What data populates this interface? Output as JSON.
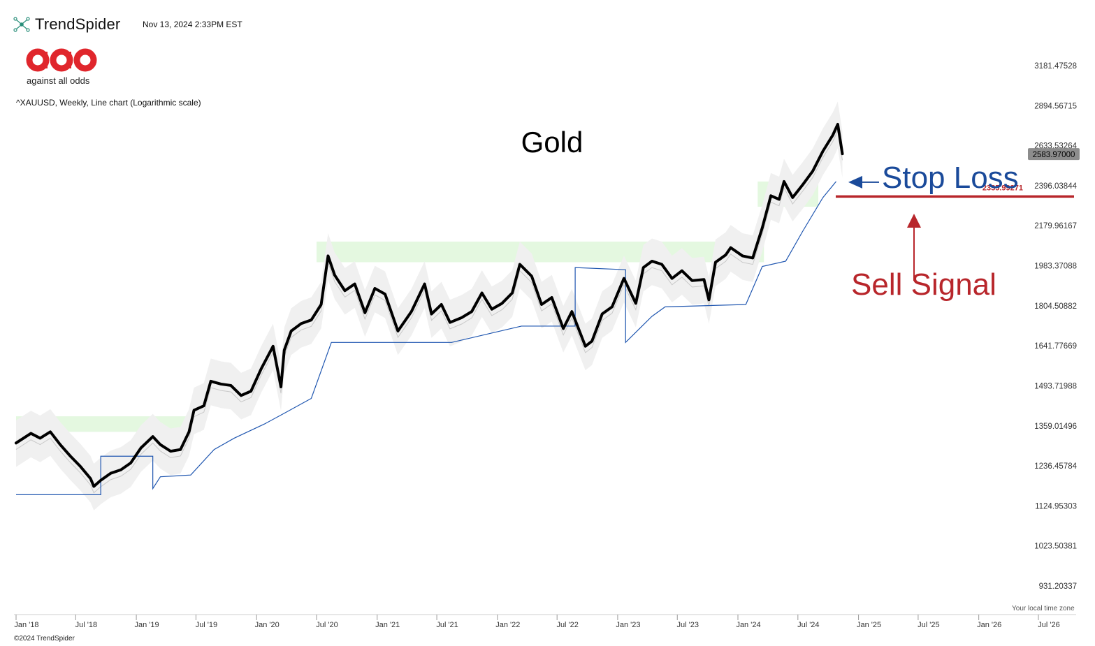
{
  "header": {
    "brand": "TrendSpider",
    "timestamp": "Nov 13, 2024 2:33PM EST",
    "logo_tagline": "against all odds",
    "subtitle": "^XAUUSD, Weekly, Line chart (Logarithmic scale)"
  },
  "footer": {
    "local_tz": "Your local time zone",
    "copyright": "©2024 TrendSpider"
  },
  "colors": {
    "price_line": "#000000",
    "stop_line": "#1f56b0",
    "band_fill": "#f0f0f0",
    "supply_zone": "#e4f8e0",
    "sell_level": "#b8262b",
    "stop_annotation": "#1a4a9a"
  },
  "chart_data": {
    "type": "line",
    "title": "Gold",
    "scale": "log",
    "y_ticks": [
      "3181.47528",
      "2894.56715",
      "2633.53264",
      "2396.03844",
      "2179.96167",
      "1983.37088",
      "1804.50882",
      "1641.77669",
      "1493.71988",
      "1359.01496",
      "1236.45784",
      "1124.95303",
      "1023.50381",
      "931.20337"
    ],
    "x_ticks": [
      "Jan '18",
      "Jul '18",
      "Jan '19",
      "Jul '19",
      "Jan '20",
      "Jul '20",
      "Jan '21",
      "Jul '21",
      "Jan '22",
      "Jul '22",
      "Jan '23",
      "Jul '23",
      "Jan '24",
      "Jul '24",
      "Jan '25",
      "Jul '25",
      "Jan '26",
      "Jul '26"
    ],
    "ylim": [
      900,
      3280
    ],
    "last_price": "2583.97000",
    "sell_level": "2335.99271",
    "series": [
      {
        "role": "price",
        "points": [
          [
            "2018-01-01",
            1305
          ],
          [
            "2018-02-15",
            1335
          ],
          [
            "2018-03-15",
            1320
          ],
          [
            "2018-04-15",
            1340
          ],
          [
            "2018-05-15",
            1300
          ],
          [
            "2018-06-15",
            1265
          ],
          [
            "2018-07-15",
            1235
          ],
          [
            "2018-08-15",
            1200
          ],
          [
            "2018-08-25",
            1178
          ],
          [
            "2018-09-15",
            1195
          ],
          [
            "2018-10-15",
            1215
          ],
          [
            "2018-11-15",
            1225
          ],
          [
            "2018-12-15",
            1245
          ],
          [
            "2019-01-15",
            1290
          ],
          [
            "2019-02-20",
            1325
          ],
          [
            "2019-03-15",
            1300
          ],
          [
            "2019-04-15",
            1280
          ],
          [
            "2019-05-15",
            1285
          ],
          [
            "2019-06-10",
            1340
          ],
          [
            "2019-06-25",
            1410
          ],
          [
            "2019-07-25",
            1425
          ],
          [
            "2019-08-15",
            1510
          ],
          [
            "2019-09-15",
            1500
          ],
          [
            "2019-10-15",
            1495
          ],
          [
            "2019-11-15",
            1460
          ],
          [
            "2019-12-15",
            1475
          ],
          [
            "2020-01-15",
            1555
          ],
          [
            "2020-02-20",
            1640
          ],
          [
            "2020-03-15",
            1490
          ],
          [
            "2020-03-25",
            1625
          ],
          [
            "2020-04-15",
            1700
          ],
          [
            "2020-05-15",
            1730
          ],
          [
            "2020-06-15",
            1745
          ],
          [
            "2020-07-15",
            1810
          ],
          [
            "2020-08-05",
            2030
          ],
          [
            "2020-08-25",
            1940
          ],
          [
            "2020-09-25",
            1870
          ],
          [
            "2020-10-25",
            1900
          ],
          [
            "2020-11-25",
            1775
          ],
          [
            "2020-12-25",
            1880
          ],
          [
            "2021-01-25",
            1855
          ],
          [
            "2021-03-05",
            1700
          ],
          [
            "2021-04-15",
            1780
          ],
          [
            "2021-05-25",
            1900
          ],
          [
            "2021-06-15",
            1770
          ],
          [
            "2021-07-15",
            1810
          ],
          [
            "2021-08-10",
            1735
          ],
          [
            "2021-09-15",
            1755
          ],
          [
            "2021-10-15",
            1780
          ],
          [
            "2021-11-15",
            1860
          ],
          [
            "2021-12-15",
            1790
          ],
          [
            "2022-01-15",
            1815
          ],
          [
            "2022-02-15",
            1860
          ],
          [
            "2022-03-10",
            1990
          ],
          [
            "2022-04-15",
            1935
          ],
          [
            "2022-05-15",
            1810
          ],
          [
            "2022-06-15",
            1840
          ],
          [
            "2022-07-20",
            1710
          ],
          [
            "2022-08-15",
            1780
          ],
          [
            "2022-09-25",
            1640
          ],
          [
            "2022-10-15",
            1660
          ],
          [
            "2022-11-15",
            1770
          ],
          [
            "2022-12-15",
            1800
          ],
          [
            "2023-01-20",
            1925
          ],
          [
            "2023-02-25",
            1815
          ],
          [
            "2023-03-20",
            1975
          ],
          [
            "2023-04-15",
            2005
          ],
          [
            "2023-05-15",
            1990
          ],
          [
            "2023-06-15",
            1925
          ],
          [
            "2023-07-15",
            1960
          ],
          [
            "2023-08-15",
            1915
          ],
          [
            "2023-09-20",
            1920
          ],
          [
            "2023-10-05",
            1830
          ],
          [
            "2023-10-25",
            2000
          ],
          [
            "2023-11-25",
            2035
          ],
          [
            "2023-12-10",
            2070
          ],
          [
            "2024-01-15",
            2030
          ],
          [
            "2024-02-15",
            2020
          ],
          [
            "2024-03-15",
            2170
          ],
          [
            "2024-04-10",
            2340
          ],
          [
            "2024-05-05",
            2320
          ],
          [
            "2024-05-20",
            2420
          ],
          [
            "2024-06-15",
            2330
          ],
          [
            "2024-07-15",
            2400
          ],
          [
            "2024-08-15",
            2480
          ],
          [
            "2024-09-15",
            2600
          ],
          [
            "2024-10-15",
            2700
          ],
          [
            "2024-10-30",
            2770
          ],
          [
            "2024-11-13",
            2584
          ]
        ]
      },
      {
        "role": "trailing-stop",
        "points": [
          [
            "2018-01-01",
            1155
          ],
          [
            "2018-09-15",
            1155
          ],
          [
            "2018-09-15",
            1265
          ],
          [
            "2019-02-20",
            1265
          ],
          [
            "2019-02-20",
            1172
          ],
          [
            "2019-03-15",
            1205
          ],
          [
            "2019-06-15",
            1210
          ],
          [
            "2019-08-25",
            1285
          ],
          [
            "2019-10-25",
            1320
          ],
          [
            "2020-01-25",
            1365
          ],
          [
            "2020-03-25",
            1400
          ],
          [
            "2020-06-15",
            1450
          ],
          [
            "2020-08-15",
            1655
          ],
          [
            "2021-08-15",
            1655
          ],
          [
            "2022-03-15",
            1720
          ],
          [
            "2022-08-25",
            1720
          ],
          [
            "2022-08-25",
            1975
          ],
          [
            "2023-01-25",
            1965
          ],
          [
            "2023-01-25",
            1655
          ],
          [
            "2023-04-15",
            1760
          ],
          [
            "2023-05-25",
            1800
          ],
          [
            "2024-01-25",
            1810
          ],
          [
            "2024-03-15",
            1980
          ],
          [
            "2024-05-25",
            2005
          ],
          [
            "2024-07-15",
            2150
          ],
          [
            "2024-09-15",
            2330
          ],
          [
            "2024-10-25",
            2420
          ]
        ]
      }
    ],
    "zones": [
      {
        "role": "supply",
        "from": "2018-01-01",
        "to": "2019-07-15",
        "low": 1340,
        "high": 1390
      },
      {
        "role": "supply",
        "from": "2020-07-01",
        "to": "2024-03-20",
        "low": 2000,
        "high": 2100
      },
      {
        "role": "supply",
        "from": "2024-03-01",
        "to": "2024-09-01",
        "low": 2280,
        "high": 2420
      }
    ],
    "annotations": [
      {
        "role": "stop",
        "label": "Stop Loss"
      },
      {
        "role": "sell",
        "label": "Sell Signal"
      }
    ]
  }
}
